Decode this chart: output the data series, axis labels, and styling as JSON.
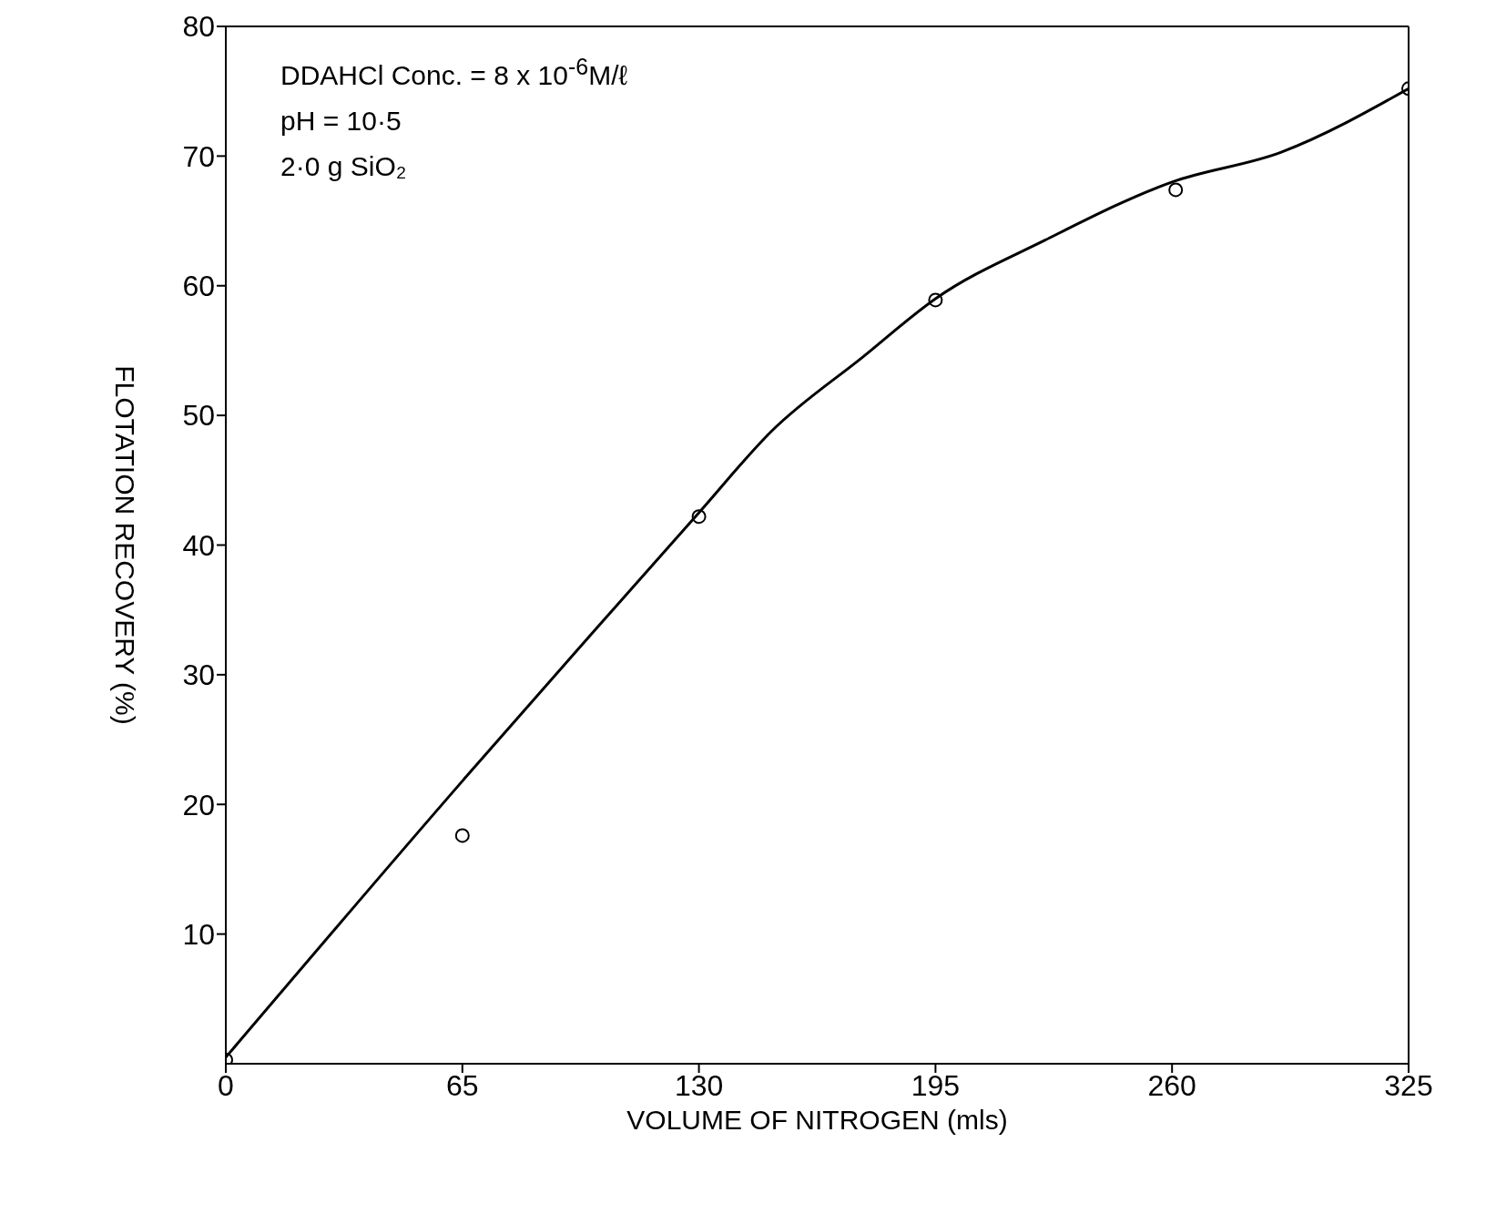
{
  "chart_data": {
    "type": "scatter",
    "xlabel": "VOLUME  OF  NITROGEN  (mls)",
    "ylabel": "FLOTATION  RECOVERY  (%)",
    "xlim": [
      0,
      325
    ],
    "xticks": [
      0,
      65,
      130,
      195,
      260,
      325
    ],
    "ylim": [
      0,
      80
    ],
    "yticks": [
      10,
      20,
      30,
      40,
      50,
      60,
      70,
      80
    ],
    "grid": false,
    "legend": false,
    "annotations": [
      "DDAHCl  Conc. = 8 x 10$^{-6}$M/ℓ",
      "pH = 10·5",
      "2·0 g SiO₂"
    ],
    "series": [
      {
        "color": "#000000",
        "marker": "circle",
        "x": [
          0,
          65,
          130,
          195,
          261,
          325
        ],
        "values": [
          0.3,
          17.6,
          42.2,
          58.9,
          67.4,
          75.2
        ]
      },
      {
        "type": "line",
        "color": "#000000",
        "marker": "none",
        "line_style": "solid",
        "x": [
          0,
          65,
          100,
          130,
          150,
          175,
          195,
          225,
          260,
          290,
          325
        ],
        "values": [
          0.5,
          21.8,
          33,
          42.5,
          48.8,
          54.5,
          59,
          63.5,
          68,
          70.3,
          75.2
        ]
      }
    ]
  }
}
